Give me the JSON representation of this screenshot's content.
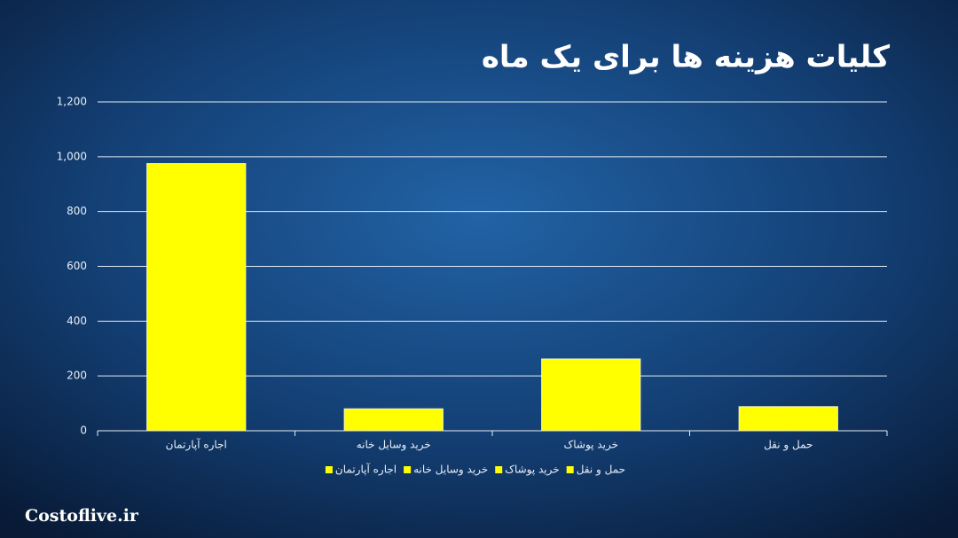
{
  "chart_data": {
    "type": "bar",
    "title": "کلیات هزینه ها برای یک ماه",
    "categories": [
      "اجاره آپارتمان",
      "خرید وسایل خانه",
      "خرید پوشاک",
      "حمل و نقل"
    ],
    "values": [
      975,
      80,
      262,
      88
    ],
    "color": "#ffff00",
    "ylim": [
      0,
      1200
    ],
    "yticks": [
      0,
      200,
      400,
      600,
      800,
      {
        "value": 1000,
        "label": "1,000"
      },
      {
        "value": 1200,
        "label": "1,200"
      }
    ],
    "grid": true,
    "legend": "bottom"
  },
  "watermark": "Costoflive.ir"
}
